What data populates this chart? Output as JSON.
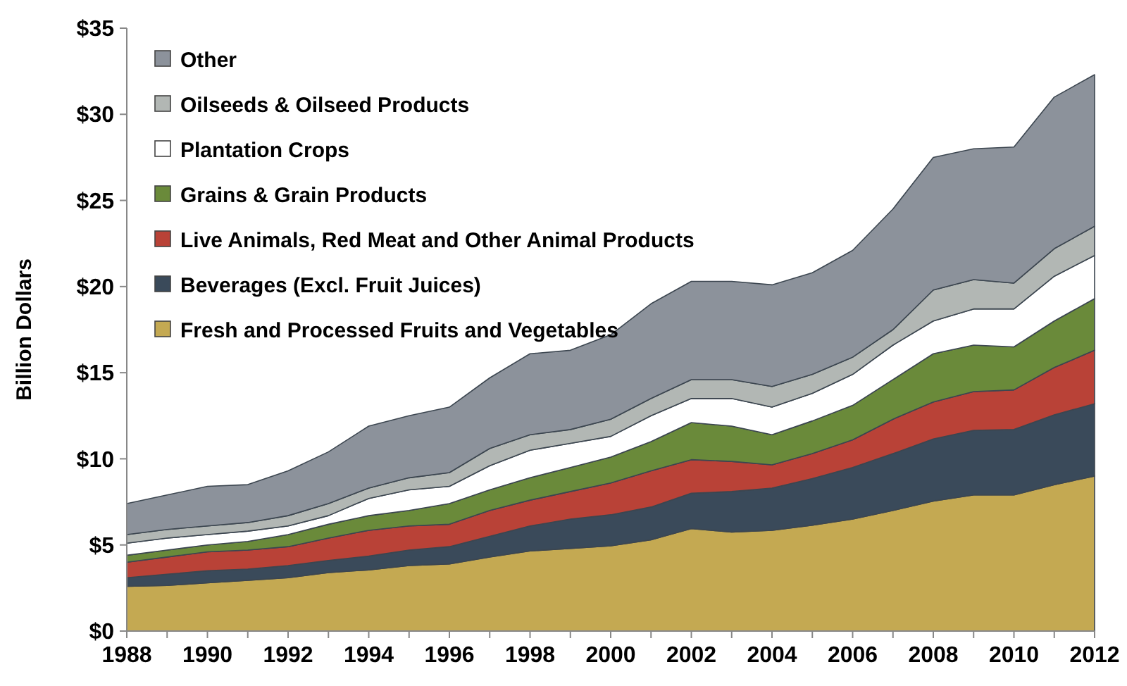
{
  "chart_data": {
    "type": "area",
    "stacked": true,
    "ylabel": "Billion Dollars",
    "x": [
      1988,
      1989,
      1990,
      1991,
      1992,
      1993,
      1994,
      1995,
      1996,
      1997,
      1998,
      1999,
      2000,
      2001,
      2002,
      2003,
      2004,
      2005,
      2006,
      2007,
      2008,
      2009,
      2010,
      2011,
      2012
    ],
    "series": [
      {
        "name": "Fresh and Processed Fruits and Vegetables",
        "color": "#c4a952",
        "values": [
          2.6,
          2.65,
          2.8,
          2.95,
          3.1,
          3.4,
          3.55,
          3.8,
          3.9,
          4.3,
          4.65,
          4.8,
          4.95,
          5.3,
          5.95,
          5.75,
          5.85,
          6.15,
          6.5,
          7.0,
          7.55,
          7.9,
          7.9,
          8.5,
          9.0
        ]
      },
      {
        "name": "Beverages (Excl. Fruit Juices)",
        "color": "#3a4a5a",
        "values": [
          0.5,
          0.65,
          0.7,
          0.65,
          0.7,
          0.7,
          0.8,
          0.9,
          1.0,
          1.2,
          1.45,
          1.7,
          1.8,
          1.9,
          2.05,
          2.35,
          2.45,
          2.7,
          3.0,
          3.3,
          3.6,
          3.75,
          3.8,
          4.05,
          4.2
        ]
      },
      {
        "name": "Live Animals, Red Meat and Other Animal Products",
        "color": "#b94237",
        "values": [
          0.9,
          1.0,
          1.1,
          1.1,
          1.1,
          1.3,
          1.5,
          1.4,
          1.3,
          1.5,
          1.5,
          1.6,
          1.85,
          2.1,
          1.95,
          1.75,
          1.35,
          1.45,
          1.6,
          2.0,
          2.15,
          2.25,
          2.3,
          2.75,
          3.1
        ]
      },
      {
        "name": "Grains & Grain Products",
        "color": "#6a8a3a",
        "values": [
          0.4,
          0.4,
          0.4,
          0.5,
          0.7,
          0.8,
          0.85,
          0.9,
          1.2,
          1.2,
          1.3,
          1.4,
          1.5,
          1.7,
          2.15,
          2.05,
          1.75,
          1.9,
          2.0,
          2.3,
          2.8,
          2.7,
          2.5,
          2.7,
          3.0
        ]
      },
      {
        "name": "Plantation Crops",
        "color": "#ffffff",
        "values": [
          0.7,
          0.7,
          0.6,
          0.6,
          0.5,
          0.5,
          1.0,
          1.2,
          1.0,
          1.4,
          1.6,
          1.4,
          1.2,
          1.5,
          1.4,
          1.6,
          1.6,
          1.6,
          1.8,
          2.0,
          1.9,
          2.1,
          2.2,
          2.6,
          2.5
        ]
      },
      {
        "name": "Oilseeds & Oilseed Products",
        "color": "#b2b7b4",
        "values": [
          0.5,
          0.5,
          0.5,
          0.5,
          0.6,
          0.7,
          0.6,
          0.7,
          0.8,
          1.0,
          0.9,
          0.8,
          1.0,
          1.0,
          1.1,
          1.1,
          1.2,
          1.1,
          1.0,
          0.9,
          1.8,
          1.7,
          1.5,
          1.6,
          1.7
        ]
      },
      {
        "name": "Other",
        "color": "#8c929b",
        "values": [
          1.8,
          2.0,
          2.3,
          2.2,
          2.6,
          3.0,
          3.6,
          3.6,
          3.8,
          4.1,
          4.7,
          4.6,
          4.9,
          5.5,
          5.7,
          5.7,
          5.9,
          5.9,
          6.2,
          7.0,
          7.7,
          7.6,
          7.9,
          8.8,
          8.8
        ]
      }
    ],
    "xlim": [
      1988,
      2012
    ],
    "xticks": [
      1988,
      {
        "value": 1989,
        "label": null
      },
      1990,
      {
        "value": 1991,
        "label": null
      },
      1992,
      {
        "value": 1993,
        "label": null
      },
      1994,
      {
        "value": 1995,
        "label": null
      },
      1996,
      {
        "value": 1997,
        "label": null
      },
      1998,
      {
        "value": 1999,
        "label": null
      },
      2000,
      {
        "value": 2001,
        "label": null
      },
      2002,
      {
        "value": 2003,
        "label": null
      },
      2004,
      {
        "value": 2005,
        "label": null
      },
      2006,
      {
        "value": 2007,
        "label": null
      },
      2008,
      {
        "value": 2009,
        "label": null
      },
      2010,
      {
        "value": 2011,
        "label": null
      },
      2012
    ],
    "ylim": [
      0,
      35
    ],
    "yticks": [
      {
        "value": 0,
        "label": "$0"
      },
      {
        "value": 5,
        "label": "$5"
      },
      {
        "value": 10,
        "label": "$10"
      },
      {
        "value": 15,
        "label": "$15"
      },
      {
        "value": 20,
        "label": "$20"
      },
      {
        "value": 25,
        "label": "$25"
      },
      {
        "value": 30,
        "label": "$30"
      },
      {
        "value": 35,
        "label": "$35"
      }
    ],
    "grid": false,
    "legend": "top left"
  }
}
